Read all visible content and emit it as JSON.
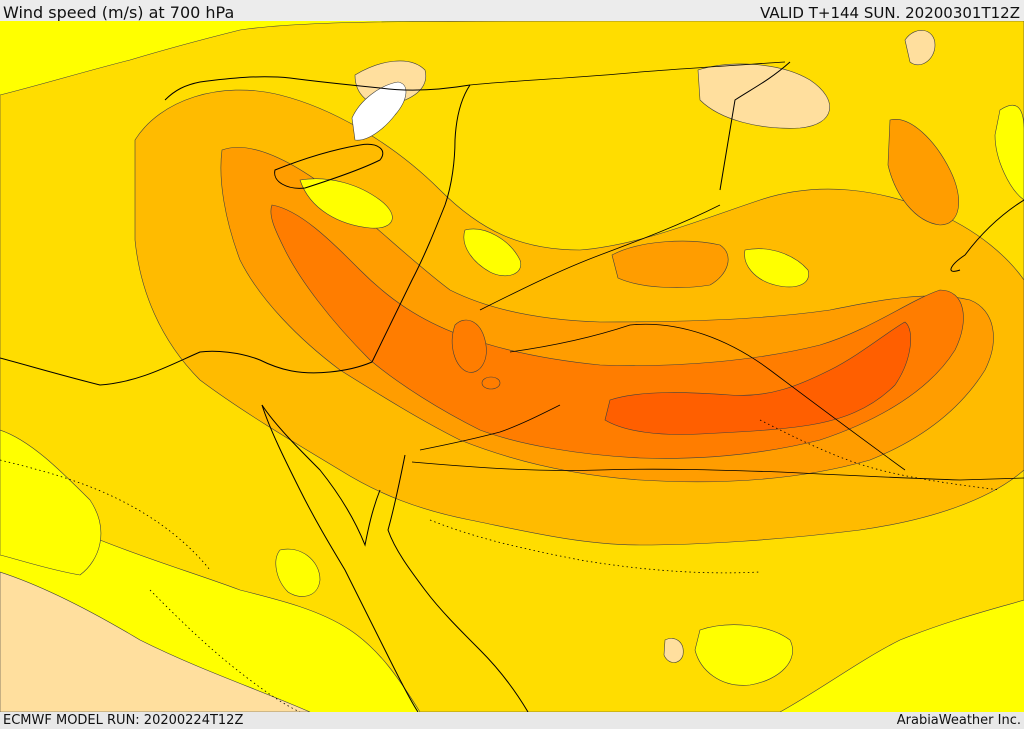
{
  "header": {
    "title": "Wind speed (m/s) at 700 hPa",
    "valid_time": "VALID T+144 SUN. 20200301T12Z"
  },
  "footer": {
    "model_run": "ECMWF MODEL RUN: 20200224T12Z",
    "credit": "ArabiaWeather Inc."
  },
  "map": {
    "field": "wind-speed",
    "level": "700 hPa",
    "palette": {
      "calm": "#ffffff",
      "very_light": "#ffdf9e",
      "light": "#ffff00",
      "moderate": "#ffdd00",
      "fresh": "#ffbb00",
      "strong": "#ff9d00",
      "very_strong": "#ff7d00",
      "extreme": "#ff5f00",
      "coast_line": "#000000",
      "contour_line": "#404040"
    }
  }
}
